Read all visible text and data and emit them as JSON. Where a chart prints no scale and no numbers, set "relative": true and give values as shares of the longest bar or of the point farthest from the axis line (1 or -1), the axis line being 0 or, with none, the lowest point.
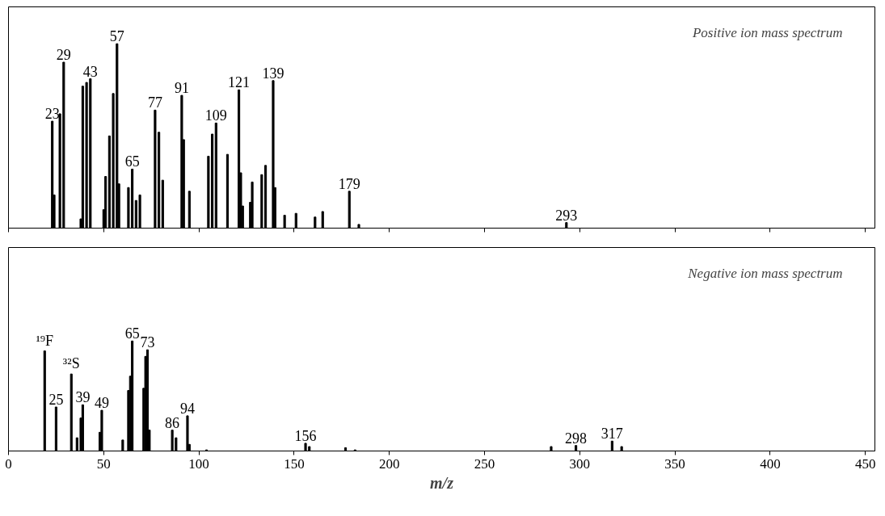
{
  "chart_data": [
    {
      "type": "bar",
      "relative": true,
      "color": "#000000",
      "xlim": [
        0,
        455
      ],
      "xticks": [
        0,
        50,
        100,
        150,
        200,
        250,
        300,
        350,
        400,
        450
      ],
      "tick_labels": false,
      "grid": false,
      "x": [
        23,
        24,
        27,
        29,
        38,
        39,
        41,
        43,
        50,
        51,
        53,
        55,
        57,
        58,
        63,
        65,
        67,
        69,
        77,
        79,
        81,
        91,
        92,
        95,
        105,
        107,
        109,
        115,
        121,
        122,
        123,
        127,
        128,
        133,
        135,
        139,
        140,
        145,
        151,
        161,
        165,
        179,
        184,
        293
      ],
      "values": [
        0.58,
        0.18,
        0.62,
        0.9,
        0.05,
        0.77,
        0.79,
        0.81,
        0.1,
        0.28,
        0.5,
        0.73,
        1,
        0.24,
        0.22,
        0.32,
        0.15,
        0.18,
        0.64,
        0.52,
        0.26,
        0.72,
        0.48,
        0.2,
        0.39,
        0.51,
        0.57,
        0.4,
        0.75,
        0.3,
        0.12,
        0.14,
        0.25,
        0.29,
        0.34,
        0.8,
        0.22,
        0.07,
        0.08,
        0.06,
        0.09,
        0.2,
        0.02,
        0.03
      ],
      "annotations": [
        "Positive ion mass spectrum",
        {
          "text": "23",
          "x": 23,
          "y": 0.58
        },
        {
          "text": "29",
          "x": 29,
          "y": 0.9
        },
        {
          "text": "43",
          "x": 43,
          "y": 0.81
        },
        {
          "text": "57",
          "x": 57,
          "y": 1
        },
        {
          "text": "65",
          "x": 65,
          "y": 0.32
        },
        {
          "text": "77",
          "x": 77,
          "y": 0.64
        },
        {
          "text": "91",
          "x": 91,
          "y": 0.72
        },
        {
          "text": "109",
          "x": 109,
          "y": 0.57
        },
        {
          "text": "121",
          "x": 121,
          "y": 0.75
        },
        {
          "text": "139",
          "x": 139,
          "y": 0.8
        },
        {
          "text": "179",
          "x": 179,
          "y": 0.2
        },
        {
          "text": "293",
          "x": 293,
          "y": 0.03
        }
      ]
    },
    {
      "type": "bar",
      "relative": true,
      "color": "#000000",
      "xlim": [
        0,
        455
      ],
      "xticks": [
        0,
        50,
        100,
        150,
        200,
        250,
        300,
        350,
        400,
        450
      ],
      "tick_labels": "x",
      "grid": false,
      "xlabel": "m/z",
      "x": [
        19,
        25,
        33,
        36,
        38,
        39,
        48,
        49,
        60,
        63,
        64,
        65,
        71,
        72,
        73,
        74,
        86,
        88,
        94,
        95,
        104,
        156,
        158,
        177,
        182,
        285,
        298,
        317,
        322
      ],
      "values": [
        0.91,
        0.4,
        0.7,
        0.12,
        0.3,
        0.42,
        0.17,
        0.37,
        0.1,
        0.55,
        0.68,
        1,
        0.57,
        0.86,
        0.92,
        0.19,
        0.19,
        0.12,
        0.32,
        0.06,
        0.01,
        0.07,
        0.04,
        0.03,
        0.01,
        0.04,
        0.05,
        0.09,
        0.04
      ],
      "annotations": [
        "Negative ion mass spectrum",
        {
          "text": "¹⁹F",
          "x": 19,
          "y": 0.91
        },
        {
          "text": "25",
          "x": 25,
          "y": 0.4
        },
        {
          "text": "³²S",
          "x": 33,
          "y": 0.7
        },
        {
          "text": "39",
          "x": 39,
          "y": 0.42
        },
        {
          "text": "49",
          "x": 49,
          "y": 0.37
        },
        {
          "text": "65",
          "x": 65,
          "y": 1
        },
        {
          "text": "73",
          "x": 73,
          "y": 0.92
        },
        {
          "text": "86",
          "x": 86,
          "y": 0.19
        },
        {
          "text": "94",
          "x": 94,
          "y": 0.32
        },
        {
          "text": "156",
          "x": 156,
          "y": 0.07
        },
        {
          "text": "298",
          "x": 298,
          "y": 0.05
        },
        {
          "text": "317",
          "x": 317,
          "y": 0.09
        }
      ]
    }
  ]
}
